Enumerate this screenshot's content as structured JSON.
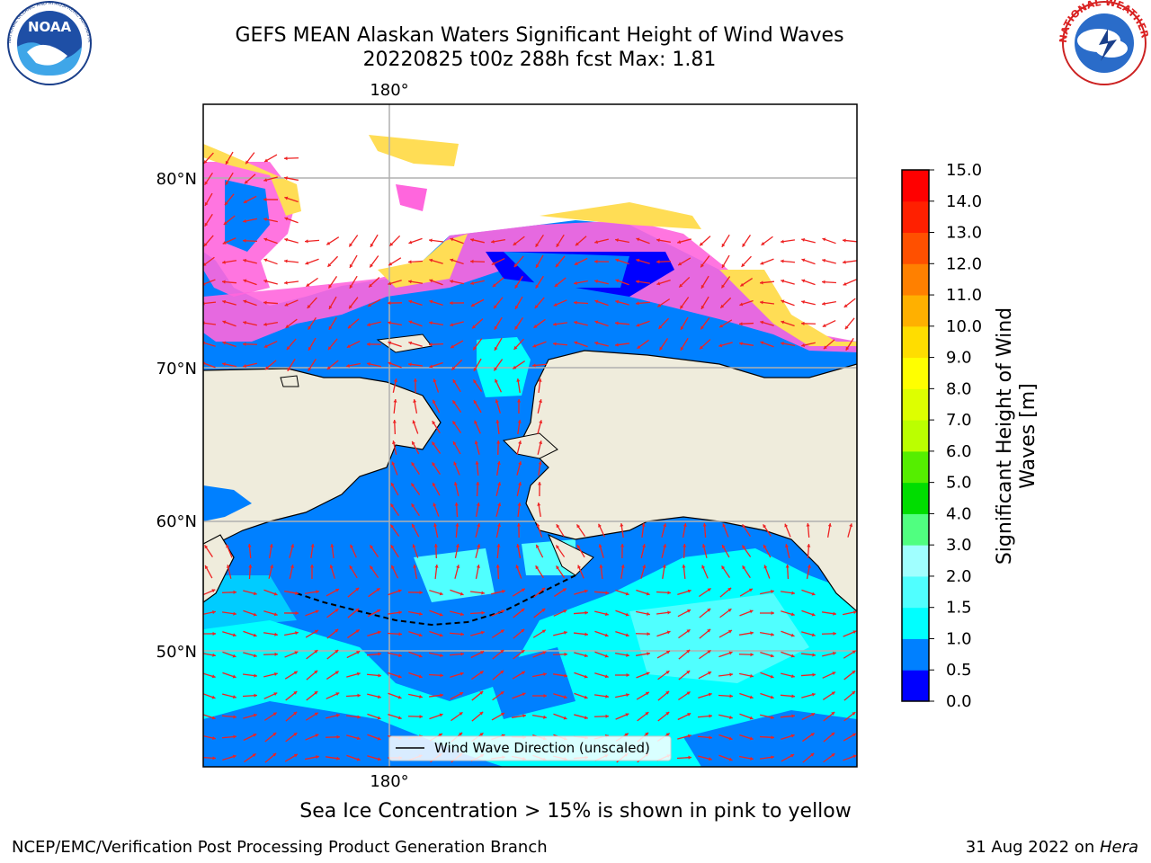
{
  "header": {
    "title_line1": "GEFS MEAN Alaskan Waters Significant Height of Wind Waves",
    "title_line2": "20220825 t00z 288h fcst   Max: 1.81"
  },
  "logos": {
    "noaa_text": "NOAA",
    "noaa_ring_text": "NATIONAL OCEANIC AND ATMOSPHERIC ADMINISTRATION · U.S. DEPARTMENT OF COMMERCE",
    "nws_ring_text": "NATIONAL WEATHER SERVICE"
  },
  "map": {
    "lon_label_top": "180°",
    "lon_label_bottom": "180°",
    "lat_labels": [
      "80°N",
      "70°N",
      "60°N",
      "50°N"
    ],
    "legend_label": "Wind Wave Direction (unscaled)",
    "colors": {
      "land": "#efecdc",
      "ocean_low": "#0080ff",
      "ocean_mid": "#00ffff",
      "ocean_deep": "#0000ff",
      "ice_pink": "#ff66dd",
      "ice_yellow": "#ffdd55",
      "arrow": "#ee2222",
      "grid": "#b0b0b0"
    }
  },
  "colorbar": {
    "label_line1": "Significant Height of Wind",
    "label_line2": "Waves [m]",
    "ticks": [
      "0.0",
      "0.5",
      "1.0",
      "1.5",
      "2.0",
      "3.0",
      "4.0",
      "5.0",
      "6.0",
      "7.0",
      "8.0",
      "9.0",
      "10.0",
      "11.0",
      "12.0",
      "13.0",
      "14.0",
      "15.0"
    ],
    "colors": [
      "#0000ff",
      "#0080ff",
      "#00ffff",
      "#50ffff",
      "#a0ffff",
      "#50ff80",
      "#00dd00",
      "#55ee00",
      "#bbff00",
      "#ddff00",
      "#ffff00",
      "#ffdd00",
      "#ffb000",
      "#ff8000",
      "#ff5000",
      "#ff2000",
      "#ff0000"
    ]
  },
  "footer": {
    "caption": "Sea Ice Concentration > 15% is shown in pink to yellow",
    "credit_left": "NCEP/EMC/Verification Post Processing Product Generation Branch",
    "credit_right_date": "31 Aug 2022 on ",
    "credit_right_host": "Hera"
  }
}
